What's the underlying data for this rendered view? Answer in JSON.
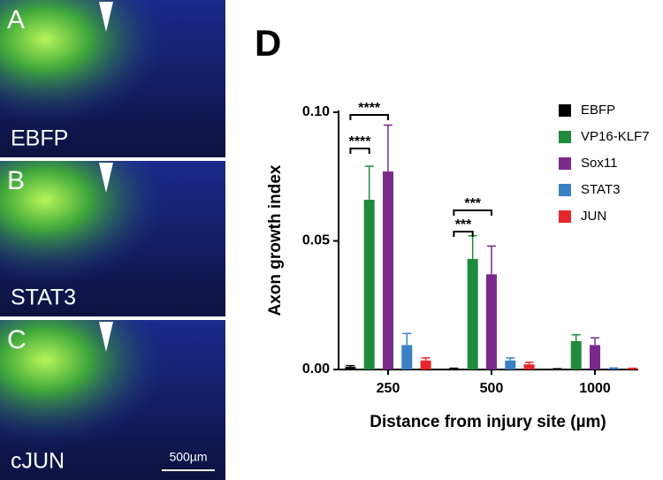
{
  "panels": [
    {
      "letter": "A",
      "label": "EBFP"
    },
    {
      "letter": "B",
      "label": "STAT3"
    },
    {
      "letter": "C",
      "label": "cJUN"
    }
  ],
  "scale_bar": "500µm",
  "chart_data": {
    "type": "bar",
    "panel": "D",
    "ylabel": "Axon growth index",
    "xlabel": "Distance from injury site (µm)",
    "categories": [
      "250",
      "500",
      "1000"
    ],
    "series": [
      {
        "name": "EBFP",
        "color": "#000000",
        "values": [
          0.001,
          0.0003,
          0.0002
        ],
        "errors": [
          0.0005,
          0.0002,
          0.0001
        ]
      },
      {
        "name": "VP16-KLF7",
        "color": "#1f8a3c",
        "values": [
          0.066,
          0.043,
          0.011
        ],
        "errors": [
          0.013,
          0.009,
          0.0025
        ]
      },
      {
        "name": "Sox11",
        "color": "#7b2a8c",
        "values": [
          0.077,
          0.037,
          0.0095
        ],
        "errors": [
          0.018,
          0.011,
          0.0028
        ]
      },
      {
        "name": "STAT3",
        "color": "#3b7fc4",
        "values": [
          0.0095,
          0.0035,
          0.0003
        ],
        "errors": [
          0.0045,
          0.001,
          0.0003
        ]
      },
      {
        "name": "JUN",
        "color": "#e8262b",
        "values": [
          0.0035,
          0.002,
          0.0003
        ],
        "errors": [
          0.001,
          0.0008,
          0.0002
        ]
      }
    ],
    "ylim": [
      0,
      0.1
    ],
    "yticks": [
      {
        "value": 0,
        "label": "0.00"
      },
      {
        "value": 0.05,
        "label": "0.05"
      },
      {
        "value": 0.1,
        "label": "0.10"
      }
    ],
    "annotations": [
      "****",
      "****",
      "***",
      "***"
    ]
  }
}
